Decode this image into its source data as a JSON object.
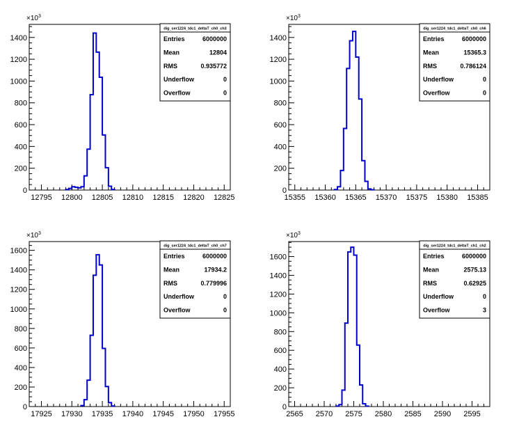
{
  "colors": {
    "histogram_line": "#0000cc",
    "axis": "#000000",
    "background": "#ffffff"
  },
  "chart_data": [
    {
      "type": "histogram",
      "title": "dig_ser1224_tdc1_deltaT_ch0_ch3",
      "y_exponent_label": {
        "base": "×10",
        "exp": "3"
      },
      "xlim": [
        12793,
        12826
      ],
      "ylim": [
        0,
        1520
      ],
      "x_ticks": [
        "12795",
        "12800",
        "12805",
        "12810",
        "12815",
        "12820",
        "12825"
      ],
      "y_ticks": [
        "0",
        "200",
        "400",
        "600",
        "800",
        "1000",
        "1200",
        "1400"
      ],
      "bin_width": 0.5,
      "bins_x": [
        12799.0,
        12799.5,
        12800.0,
        12800.5,
        12801.0,
        12801.5,
        12802.0,
        12802.5,
        12803.0,
        12803.5,
        12804.0,
        12804.5,
        12805.0,
        12805.5,
        12806.0,
        12806.5
      ],
      "bins_y": [
        5,
        15,
        30,
        25,
        20,
        30,
        130,
        375,
        875,
        1440,
        1265,
        1035,
        505,
        205,
        35,
        5
      ],
      "stats": [
        {
          "label": "Entries",
          "value": "6000000"
        },
        {
          "label": "Mean",
          "value": "12804"
        },
        {
          "label": "RMS",
          "value": "0.935772"
        },
        {
          "label": "Underflow",
          "value": "0"
        },
        {
          "label": "Overflow",
          "value": "0"
        }
      ]
    },
    {
      "type": "histogram",
      "title": "dig_ser1224_tdc1_deltaT_ch0_ch6",
      "y_exponent_label": {
        "base": "×10",
        "exp": "3"
      },
      "xlim": [
        15354,
        15387
      ],
      "ylim": [
        0,
        1520
      ],
      "x_ticks": [
        "15355",
        "15360",
        "15365",
        "15370",
        "15375",
        "15380",
        "15385"
      ],
      "y_ticks": [
        "0",
        "200",
        "400",
        "600",
        "800",
        "1000",
        "1200",
        "1400"
      ],
      "bin_width": 0.5,
      "bins_x": [
        15361.5,
        15362.0,
        15362.5,
        15363.0,
        15363.5,
        15364.0,
        15364.5,
        15365.0,
        15365.5,
        15366.0,
        15366.5,
        15367.0,
        15367.5
      ],
      "bins_y": [
        5,
        30,
        180,
        565,
        1115,
        1370,
        1455,
        1220,
        835,
        270,
        80,
        10,
        2
      ],
      "stats": [
        {
          "label": "Entries",
          "value": "6000000"
        },
        {
          "label": "Mean",
          "value": "15365.3"
        },
        {
          "label": "RMS",
          "value": "0.786124"
        },
        {
          "label": "Underflow",
          "value": "0"
        },
        {
          "label": "Overflow",
          "value": "0"
        }
      ]
    },
    {
      "type": "histogram",
      "title": "dig_ser1224_tdc1_deltaT_ch0_ch7",
      "y_exponent_label": {
        "base": "×10",
        "exp": "3"
      },
      "xlim": [
        17923,
        17956
      ],
      "ylim": [
        0,
        1690
      ],
      "x_ticks": [
        "17925",
        "17930",
        "17935",
        "17940",
        "17945",
        "17950",
        "17955"
      ],
      "y_ticks": [
        "0",
        "200",
        "400",
        "600",
        "800",
        "1000",
        "1200",
        "1400",
        "1600"
      ],
      "bin_width": 0.5,
      "bins_x": [
        17931.5,
        17932.0,
        17932.5,
        17933.0,
        17933.5,
        17934.0,
        17934.5,
        17935.0,
        17935.5,
        17936.0,
        17936.5
      ],
      "bins_y": [
        10,
        70,
        270,
        730,
        1345,
        1555,
        1450,
        595,
        205,
        40,
        5
      ],
      "stats": [
        {
          "label": "Entries",
          "value": "6000000"
        },
        {
          "label": "Mean",
          "value": "17934.2"
        },
        {
          "label": "RMS",
          "value": "0.779996"
        },
        {
          "label": "Underflow",
          "value": "0"
        },
        {
          "label": "Overflow",
          "value": "0"
        }
      ]
    },
    {
      "type": "histogram",
      "title": "dig_ser1224_tdc1_deltaT_ch1_ch2",
      "y_exponent_label": {
        "base": "×10",
        "exp": "3"
      },
      "xlim": [
        2564,
        2598
      ],
      "ylim": [
        0,
        1760
      ],
      "x_ticks": [
        "2565",
        "2570",
        "2575",
        "2580",
        "2585",
        "2590",
        "2595"
      ],
      "y_ticks": [
        "0",
        "200",
        "400",
        "600",
        "800",
        "1000",
        "1200",
        "1400",
        "1600"
      ],
      "bin_width": 0.5,
      "bins_x": [
        2572.0,
        2572.5,
        2573.0,
        2573.5,
        2574.0,
        2574.5,
        2575.0,
        2575.5,
        2576.0,
        2576.5,
        2577.0
      ],
      "bins_y": [
        5,
        20,
        175,
        890,
        1650,
        1700,
        1615,
        655,
        230,
        30,
        5
      ],
      "stats": [
        {
          "label": "Entries",
          "value": "6000000"
        },
        {
          "label": "Mean",
          "value": "2575.13"
        },
        {
          "label": "RMS",
          "value": "0.62925"
        },
        {
          "label": "Underflow",
          "value": "0"
        },
        {
          "label": "Overflow",
          "value": "3"
        }
      ]
    }
  ]
}
